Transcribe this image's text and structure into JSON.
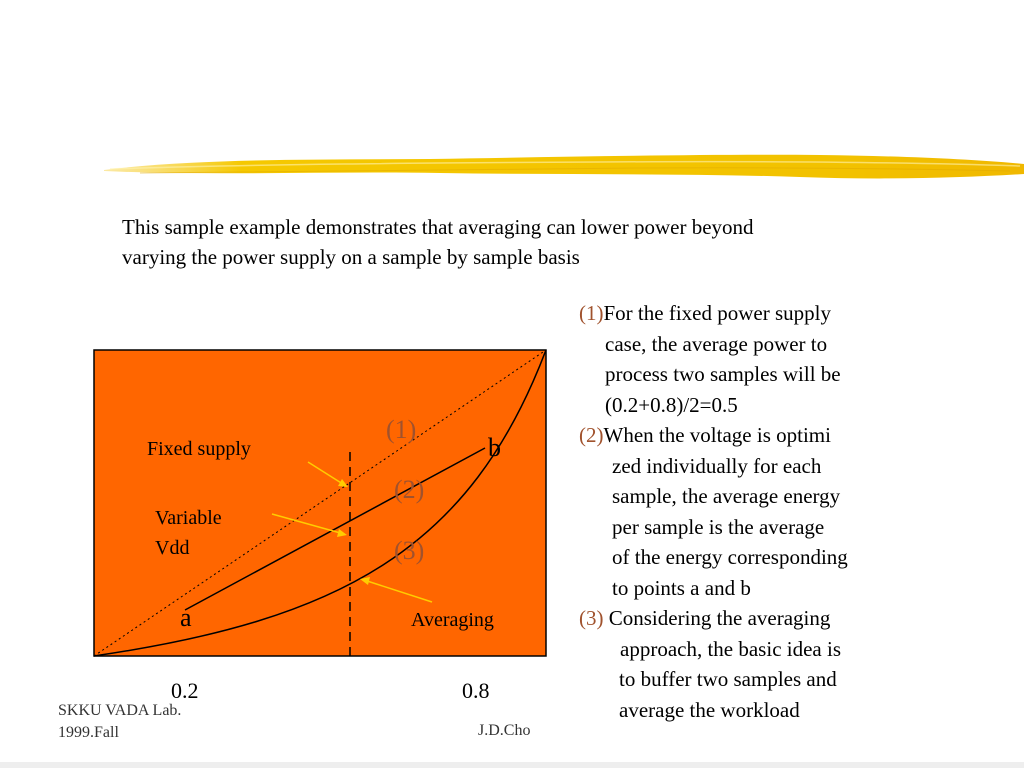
{
  "intro": {
    "line1": "This sample example demonstrates that averaging can lower power beyond",
    "line2": "varying the power supply on a sample by sample basis"
  },
  "diagram": {
    "label_fixed_supply": "Fixed supply",
    "label_variable_1": "Variable",
    "label_variable_2": "Vdd",
    "label_averaging": "Averaging",
    "point_a": "a",
    "point_b": "b",
    "marker_1": "(1)",
    "marker_2": "(2)",
    "marker_3": "(3)",
    "tick_left": "0.2",
    "tick_right": "0.8",
    "colors": {
      "panel": "#ff6600",
      "arrow": "#ffcc00",
      "marker": "#a0522d",
      "brush": "#f5c800"
    }
  },
  "notes": {
    "n1_num": "(1)",
    "n1_line1": "For the fixed power supply",
    "n1_line2": "case, the average power to",
    "n1_line3": "process two samples will be",
    "n1_line4": "(0.2+0.8)/2=0.5",
    "n2_num": "(2)",
    "n2_line1": "When the voltage is optimi",
    "n2_line2": "zed individually for each",
    "n2_line3": "sample, the average energy",
    "n2_line4": "per sample is the  average",
    "n2_line5": "of the energy  corresponding",
    "n2_line6": "to points a and b",
    "n3_num": "(3)",
    "n3_line1": " Considering the averaging",
    "n3_line2": "approach, the basic idea is",
    "n3_line3": "to buffer two samples and",
    "n3_line4": "average the workload"
  },
  "footer": {
    "lab": "SKKU VADA Lab.",
    "term": "1999.Fall",
    "author": "J.D.Cho"
  }
}
